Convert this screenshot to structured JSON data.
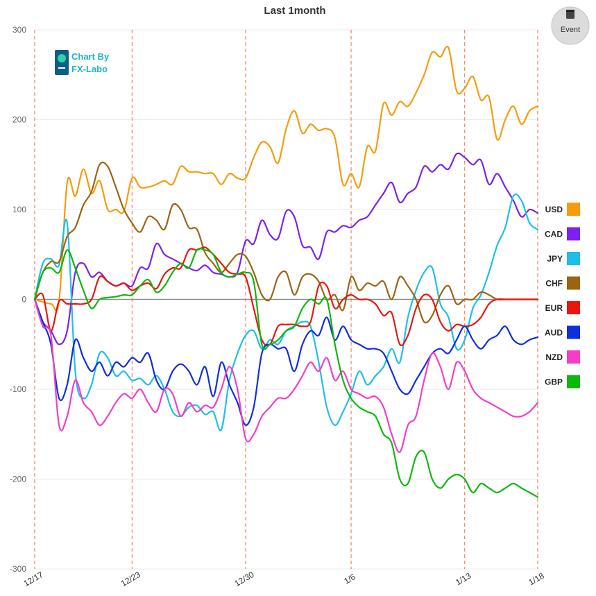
{
  "chart_data": {
    "type": "line",
    "title": "Last 1month",
    "ylim": [
      -300,
      300
    ],
    "yticks": [
      300,
      200,
      100,
      0,
      -100,
      -200,
      -300
    ],
    "x_range": [
      0,
      31
    ],
    "x_tick_labels": [
      {
        "label": "12/17",
        "x": 0
      },
      {
        "label": "12/23",
        "x": 6
      },
      {
        "label": "12/30",
        "x": 13
      },
      {
        "label": "1/6",
        "x": 19.5
      },
      {
        "label": "1/13",
        "x": 26.5
      },
      {
        "label": "1/18",
        "x": 31
      }
    ],
    "series": [
      {
        "name": "USD",
        "color": "#f59c0c",
        "x": [
          0,
          1,
          1.5,
          2,
          2.5,
          3,
          3.5,
          4,
          4.5,
          5,
          5.5,
          6,
          6.5,
          7,
          7.5,
          8,
          8.5,
          9,
          9.5,
          10,
          10.5,
          11,
          11.5,
          12,
          12.5,
          13,
          13.5,
          14,
          14.5,
          15,
          15.5,
          16,
          16.5,
          17,
          17.5,
          18,
          18.5,
          19,
          19.5,
          20,
          20.5,
          21,
          21.5,
          22,
          22.5,
          23,
          23.5,
          24,
          24.5,
          25,
          25.5,
          26,
          26.5,
          27,
          27.5,
          28,
          28.5,
          29,
          29.5,
          30,
          30.5,
          31
        ],
        "y": [
          0,
          -5,
          -2,
          130,
          115,
          145,
          118,
          132,
          100,
          100,
          98,
          135,
          125,
          125,
          128,
          132,
          128,
          148,
          142,
          142,
          140,
          140,
          128,
          140,
          135,
          135,
          158,
          175,
          170,
          152,
          190,
          210,
          185,
          195,
          188,
          190,
          180,
          128,
          140,
          125,
          170,
          165,
          218,
          205,
          220,
          215,
          230,
          250,
          275,
          270,
          280,
          232,
          235,
          248,
          222,
          225,
          178,
          200,
          215,
          195,
          210,
          215
        ]
      },
      {
        "name": "CAD",
        "color": "#7b22f0",
        "x": [
          0,
          0.5,
          1,
          1.5,
          2,
          2.5,
          3,
          3.5,
          4,
          4.5,
          5,
          5.5,
          6,
          6.5,
          7,
          7.5,
          8,
          8.5,
          9,
          9.5,
          10,
          10.5,
          11,
          11.5,
          12,
          12.5,
          13,
          13.5,
          14,
          14.5,
          15,
          15.5,
          16,
          16.5,
          17,
          17.5,
          18,
          18.5,
          19,
          19.5,
          20,
          20.5,
          21,
          21.5,
          22,
          22.5,
          23,
          23.5,
          24,
          24.5,
          25,
          25.5,
          26,
          26.5,
          27,
          27.5,
          28,
          28.5,
          29,
          29.5,
          30,
          30.5,
          31
        ],
        "y": [
          0,
          -25,
          -35,
          -50,
          -35,
          30,
          40,
          25,
          30,
          20,
          15,
          18,
          15,
          35,
          35,
          62,
          50,
          45,
          40,
          35,
          32,
          38,
          30,
          28,
          25,
          30,
          65,
          62,
          88,
          72,
          68,
          98,
          92,
          60,
          58,
          45,
          75,
          75,
          82,
          80,
          88,
          92,
          105,
          118,
          130,
          108,
          118,
          125,
          148,
          142,
          150,
          145,
          162,
          158,
          150,
          155,
          128,
          140,
          125,
          110,
          92,
          100,
          96
        ]
      },
      {
        "name": "JPY",
        "color": "#1dbfe8",
        "x": [
          0,
          0.5,
          1,
          1.5,
          2,
          2.5,
          3,
          3.5,
          4,
          4.5,
          5,
          5.5,
          6,
          6.5,
          7,
          7.5,
          8,
          8.5,
          9,
          9.5,
          10,
          10.5,
          11,
          11.5,
          12,
          12.5,
          13,
          13.5,
          14,
          14.5,
          15,
          15.5,
          16,
          16.5,
          17,
          17.5,
          18,
          18.5,
          19,
          19.5,
          20,
          20.5,
          21,
          21.5,
          22,
          22.5,
          23,
          23.5,
          24,
          24.5,
          25,
          25.5,
          26,
          26.5,
          27,
          27.5,
          28,
          28.5,
          29,
          29.5,
          30,
          30.5,
          31
        ],
        "y": [
          0,
          40,
          45,
          38,
          85,
          -80,
          -110,
          -95,
          -60,
          -65,
          -85,
          -80,
          -90,
          -88,
          -95,
          -85,
          -100,
          -125,
          -130,
          -120,
          -118,
          -128,
          -125,
          -145,
          -90,
          -60,
          -40,
          -35,
          -55,
          -45,
          -50,
          -35,
          -30,
          -25,
          -30,
          -70,
          -120,
          -140,
          -125,
          -105,
          -80,
          -95,
          -85,
          -75,
          -55,
          -70,
          -20,
          10,
          30,
          35,
          -5,
          -20,
          -55,
          -45,
          -10,
          5,
          30,
          60,
          80,
          115,
          110,
          85,
          78
        ]
      },
      {
        "name": "CHF",
        "color": "#9a6410",
        "x": [
          0,
          0.5,
          1,
          1.5,
          2,
          2.5,
          3,
          3.5,
          4,
          4.5,
          5,
          5.5,
          6,
          6.5,
          7,
          7.5,
          8,
          8.5,
          9,
          9.5,
          10,
          10.5,
          11,
          11.5,
          12,
          12.5,
          13,
          13.5,
          14,
          14.5,
          15,
          15.5,
          16,
          16.5,
          17,
          17.5,
          18,
          18.5,
          19,
          19.5,
          20,
          20.5,
          21,
          21.5,
          22,
          22.5,
          23,
          23.5,
          24,
          24.5,
          25,
          25.5,
          26,
          26.5,
          27,
          27.5,
          28,
          28.5,
          29,
          29.5,
          30,
          30.5,
          31
        ],
        "y": [
          0,
          30,
          42,
          42,
          70,
          80,
          105,
          120,
          150,
          148,
          125,
          100,
          85,
          75,
          92,
          88,
          78,
          105,
          100,
          80,
          78,
          52,
          40,
          30,
          40,
          50,
          48,
          30,
          5,
          0,
          25,
          30,
          5,
          25,
          28,
          20,
          0,
          5,
          -12,
          25,
          10,
          18,
          15,
          20,
          0,
          25,
          15,
          0,
          -25,
          -18,
          5,
          15,
          -5,
          0,
          0,
          8,
          5,
          0,
          0,
          0,
          0,
          0,
          0
        ]
      },
      {
        "name": "EUR",
        "color": "#e8160c",
        "x": [
          0,
          0.5,
          1,
          1.5,
          2,
          2.5,
          3,
          3.5,
          4,
          4.5,
          5,
          5.5,
          6,
          6.5,
          7,
          7.5,
          8,
          8.5,
          9,
          9.5,
          10,
          10.5,
          11,
          11.5,
          12,
          12.5,
          13,
          13.5,
          14,
          14.5,
          15,
          15.5,
          16,
          16.5,
          17,
          17.5,
          18,
          18.5,
          19,
          19.5,
          20,
          20.5,
          21,
          21.5,
          22,
          22.5,
          23,
          23.5,
          24,
          24.5,
          25,
          25.5,
          26,
          26.5,
          27,
          27.5,
          28,
          28.5,
          29,
          29.5,
          30,
          30.5,
          31
        ],
        "y": [
          0,
          5,
          -35,
          -2,
          -5,
          -5,
          -5,
          0,
          25,
          20,
          15,
          18,
          10,
          15,
          18,
          12,
          28,
          35,
          35,
          55,
          55,
          58,
          50,
          40,
          30,
          28,
          25,
          -10,
          -45,
          -50,
          -30,
          -28,
          -28,
          -30,
          -25,
          15,
          15,
          -10,
          0,
          5,
          0,
          0,
          -5,
          -18,
          -15,
          -50,
          -40,
          -10,
          5,
          0,
          -25,
          -35,
          -28,
          -30,
          -28,
          -20,
          -5,
          0,
          0,
          0,
          0,
          0,
          0
        ]
      },
      {
        "name": "AUD",
        "color": "#0e2ee0",
        "x": [
          0,
          0.5,
          1,
          1.5,
          2,
          2.5,
          3,
          3.5,
          4,
          4.5,
          5,
          5.5,
          6,
          6.5,
          7,
          7.5,
          8,
          8.5,
          9,
          9.5,
          10,
          10.5,
          11,
          11.5,
          12,
          12.5,
          13,
          13.5,
          14,
          14.5,
          15,
          15.5,
          16,
          16.5,
          17,
          17.5,
          18,
          18.5,
          19,
          19.5,
          20,
          20.5,
          21,
          21.5,
          22,
          22.5,
          23,
          23.5,
          24,
          24.5,
          25,
          25.5,
          26,
          26.5,
          27,
          27.5,
          28,
          28.5,
          29,
          29.5,
          30,
          30.5,
          31
        ],
        "y": [
          0,
          -25,
          -50,
          -110,
          -95,
          -45,
          -65,
          -80,
          -70,
          -85,
          -70,
          -75,
          -65,
          -70,
          -60,
          -90,
          -100,
          -80,
          -72,
          -80,
          -95,
          -75,
          -108,
          -70,
          -95,
          -115,
          -140,
          -120,
          -60,
          -50,
          -55,
          -55,
          -80,
          -50,
          -35,
          -40,
          -20,
          -45,
          -30,
          -45,
          -50,
          -55,
          -55,
          -60,
          -80,
          -100,
          -105,
          -90,
          -75,
          -60,
          -55,
          -60,
          -45,
          -30,
          -45,
          -55,
          -45,
          -40,
          -30,
          -45,
          -50,
          -45,
          -42
        ]
      },
      {
        "name": "NZD",
        "color": "#f33ec8",
        "x": [
          0,
          0.5,
          1,
          1.5,
          2,
          2.5,
          3,
          3.5,
          4,
          4.5,
          5,
          5.5,
          6,
          6.5,
          7,
          7.5,
          8,
          8.5,
          9,
          9.5,
          10,
          10.5,
          11,
          11.5,
          12,
          12.5,
          13,
          13.5,
          14,
          14.5,
          15,
          15.5,
          16,
          16.5,
          17,
          17.5,
          18,
          18.5,
          19,
          19.5,
          20,
          20.5,
          21,
          21.5,
          22,
          22.5,
          23,
          23.5,
          24,
          24.5,
          25,
          25.5,
          26,
          26.5,
          27,
          27.5,
          28,
          28.5,
          29,
          29.5,
          30,
          30.5,
          31
        ],
        "y": [
          0,
          -30,
          -40,
          -140,
          -130,
          -90,
          -115,
          -125,
          -140,
          -130,
          -115,
          -105,
          -110,
          -100,
          -115,
          -125,
          -100,
          -105,
          -130,
          -115,
          -125,
          -118,
          -120,
          -100,
          -75,
          -100,
          -155,
          -150,
          -130,
          -120,
          -110,
          -110,
          -100,
          -85,
          -70,
          -80,
          -65,
          -90,
          -80,
          -100,
          -105,
          -110,
          -108,
          -120,
          -150,
          -170,
          -140,
          -130,
          -90,
          -60,
          -75,
          -100,
          -70,
          -80,
          -100,
          -110,
          -115,
          -120,
          -125,
          -130,
          -130,
          -125,
          -115
        ]
      },
      {
        "name": "GBP",
        "color": "#0cb80c",
        "x": [
          0,
          0.5,
          1,
          1.5,
          2,
          2.5,
          3,
          3.5,
          4,
          4.5,
          5,
          5.5,
          6,
          6.5,
          7,
          7.5,
          8,
          8.5,
          9,
          9.5,
          10,
          10.5,
          11,
          11.5,
          12,
          12.5,
          13,
          13.5,
          14,
          14.5,
          15,
          15.5,
          16,
          16.5,
          17,
          17.5,
          18,
          18.5,
          19,
          19.5,
          20,
          20.5,
          21,
          21.5,
          22,
          22.5,
          23,
          23.5,
          24,
          24.5,
          25,
          25.5,
          26,
          26.5,
          27,
          27.5,
          28,
          28.5,
          29,
          29.5,
          30,
          30.5,
          31
        ],
        "y": [
          0,
          30,
          35,
          30,
          55,
          35,
          10,
          -10,
          0,
          2,
          3,
          5,
          5,
          15,
          22,
          8,
          15,
          30,
          40,
          35,
          55,
          55,
          50,
          30,
          25,
          28,
          30,
          20,
          -50,
          -50,
          -45,
          -35,
          -30,
          -10,
          0,
          -5,
          0,
          -50,
          -90,
          -110,
          -120,
          -125,
          -130,
          -150,
          -160,
          -200,
          -205,
          -175,
          -170,
          -200,
          -210,
          -200,
          -195,
          -200,
          -215,
          -205,
          -210,
          -215,
          -210,
          -205,
          -210,
          -215,
          -220
        ]
      }
    ]
  },
  "logo": {
    "line1": "Chart By",
    "line2": "FX-Labo"
  },
  "event_button": {
    "label": "Event"
  }
}
